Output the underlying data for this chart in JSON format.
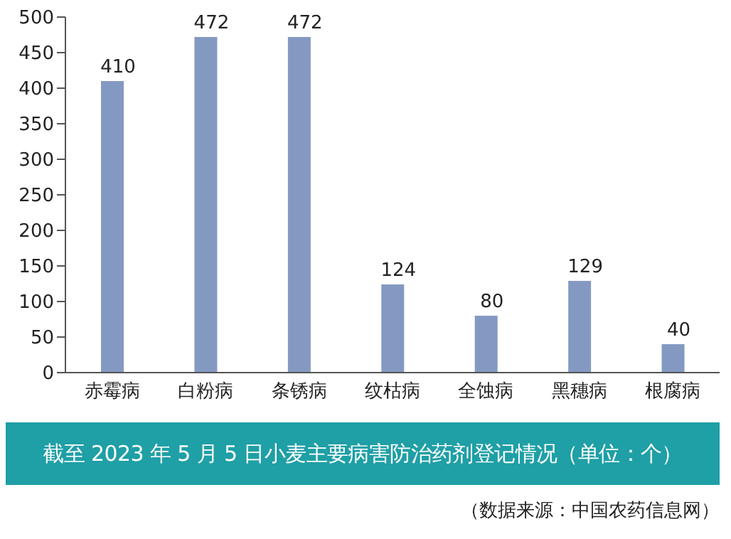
{
  "chart_data": {
    "type": "bar",
    "title": "截至 2023 年 5 月 5 日小麦主要病害防治药剂登记情况（单位：个）",
    "annotations": [
      "（数据来源：中国农药信息网）"
    ],
    "categories": [
      "赤霉病",
      "白粉病",
      "条锈病",
      "纹枯病",
      "全蚀病",
      "黑穗病",
      "根腐病"
    ],
    "values": [
      410,
      472,
      472,
      124,
      80,
      129,
      40
    ],
    "color": "#8499c2",
    "ylim": [
      0,
      500
    ],
    "yticks": [
      0,
      50,
      100,
      150,
      200,
      250,
      300,
      350,
      400,
      450,
      500
    ],
    "grid": false,
    "data_labels": true
  }
}
